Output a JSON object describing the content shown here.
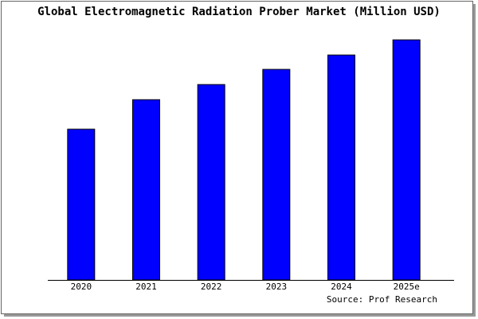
{
  "chart_data": {
    "type": "bar",
    "title": "Global Electromagnetic Radiation Prober Market (Million USD)",
    "categories": [
      "2020",
      "2021",
      "2022",
      "2023",
      "2024",
      "2025e"
    ],
    "values": [
      189,
      226,
      245,
      264,
      282,
      301
    ],
    "color": "#0000ff",
    "ylim": [
      0,
      301
    ],
    "source": "Source: Prof Research"
  }
}
